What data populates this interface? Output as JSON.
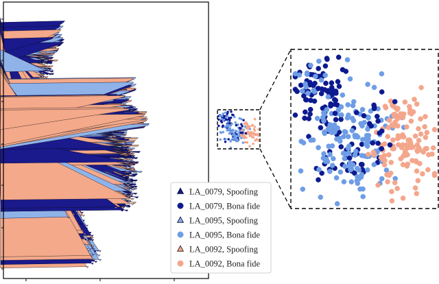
{
  "chart_data": {
    "type": "scatter",
    "title": "",
    "xlabel": "",
    "ylabel": "",
    "grid": false,
    "legend_position": "bottom-right",
    "inset": {
      "shows": "zoomed view of the small cluster at right of the main plot",
      "position": "right"
    },
    "series": [
      {
        "name": "LA_0079, Spoofing",
        "marker": "triangle",
        "color": "#1a1a8c",
        "edge": "#0a0a3a"
      },
      {
        "name": "LA_0079, Bona fide",
        "marker": "circle",
        "color": "#0d1a8f",
        "edge": "#0d1a8f"
      },
      {
        "name": "LA_0095, Spoofing",
        "marker": "triangle",
        "color": "#8fb3e8",
        "edge": "#1a1a4a"
      },
      {
        "name": "LA_0095, Bona fide",
        "marker": "circle",
        "color": "#6e9de6",
        "edge": "#6e9de6"
      },
      {
        "name": "LA_0092, Spoofing",
        "marker": "triangle",
        "color": "#f4a98a",
        "edge": "#3a2a2a"
      },
      {
        "name": "LA_0092, Bona fide",
        "marker": "circle",
        "color": "#f4a68c",
        "edge": "#f4a68c"
      }
    ]
  }
}
